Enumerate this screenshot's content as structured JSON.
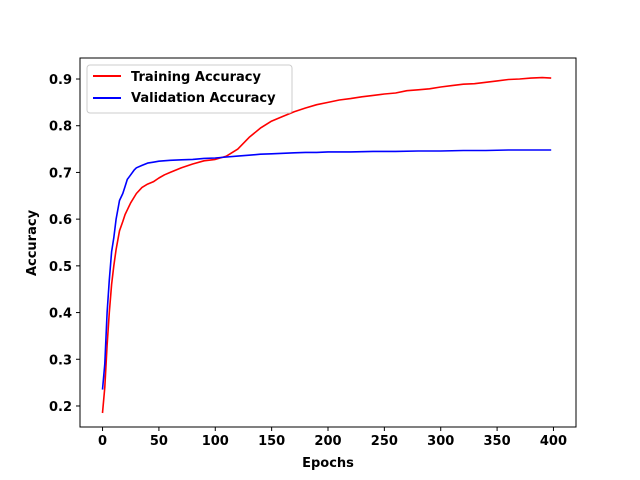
{
  "chart_data": {
    "type": "line",
    "title": "",
    "xlabel": "Epochs",
    "ylabel": "Accuracy",
    "xlim": [
      -20,
      420
    ],
    "ylim": [
      0.155,
      0.945
    ],
    "xticks": [
      0,
      50,
      100,
      150,
      200,
      250,
      300,
      350,
      400
    ],
    "yticks": [
      0.2,
      0.3,
      0.4,
      0.5,
      0.6,
      0.7,
      0.8,
      0.9
    ],
    "xtick_labels": [
      "0",
      "50",
      "100",
      "150",
      "200",
      "250",
      "300",
      "350",
      "400"
    ],
    "ytick_labels": [
      "0.2",
      "0.3",
      "0.4",
      "0.5",
      "0.6",
      "0.7",
      "0.8",
      "0.9"
    ],
    "grid": false,
    "legend_position": "top-left",
    "series": [
      {
        "name": "Training Accuracy",
        "color": "#ff0000",
        "x": [
          0,
          2,
          4,
          6,
          8,
          10,
          12,
          15,
          18,
          20,
          25,
          30,
          35,
          40,
          45,
          50,
          55,
          60,
          70,
          80,
          90,
          100,
          110,
          120,
          130,
          140,
          150,
          160,
          170,
          180,
          190,
          200,
          210,
          220,
          230,
          240,
          250,
          260,
          270,
          280,
          290,
          300,
          310,
          320,
          330,
          340,
          350,
          360,
          370,
          380,
          390,
          398
        ],
        "values": [
          0.185,
          0.24,
          0.33,
          0.4,
          0.46,
          0.5,
          0.535,
          0.575,
          0.595,
          0.61,
          0.635,
          0.655,
          0.668,
          0.675,
          0.68,
          0.688,
          0.695,
          0.7,
          0.71,
          0.718,
          0.725,
          0.728,
          0.735,
          0.75,
          0.775,
          0.795,
          0.81,
          0.82,
          0.83,
          0.838,
          0.845,
          0.85,
          0.855,
          0.858,
          0.862,
          0.865,
          0.868,
          0.87,
          0.875,
          0.877,
          0.879,
          0.883,
          0.886,
          0.889,
          0.89,
          0.893,
          0.896,
          0.899,
          0.9,
          0.902,
          0.903,
          0.902
        ]
      },
      {
        "name": "Validation Accuracy",
        "color": "#0000ff",
        "x": [
          0,
          2,
          4,
          6,
          8,
          10,
          12,
          15,
          18,
          20,
          22,
          25,
          28,
          30,
          35,
          40,
          45,
          50,
          60,
          70,
          80,
          90,
          100,
          110,
          120,
          130,
          140,
          150,
          160,
          170,
          180,
          190,
          200,
          220,
          240,
          260,
          280,
          300,
          320,
          340,
          360,
          380,
          398
        ],
        "values": [
          0.235,
          0.29,
          0.4,
          0.47,
          0.53,
          0.56,
          0.6,
          0.64,
          0.655,
          0.67,
          0.685,
          0.695,
          0.705,
          0.71,
          0.715,
          0.72,
          0.722,
          0.724,
          0.726,
          0.727,
          0.728,
          0.73,
          0.731,
          0.733,
          0.735,
          0.737,
          0.739,
          0.74,
          0.741,
          0.742,
          0.743,
          0.743,
          0.744,
          0.744,
          0.745,
          0.745,
          0.746,
          0.746,
          0.747,
          0.747,
          0.748,
          0.748,
          0.748
        ]
      }
    ]
  }
}
